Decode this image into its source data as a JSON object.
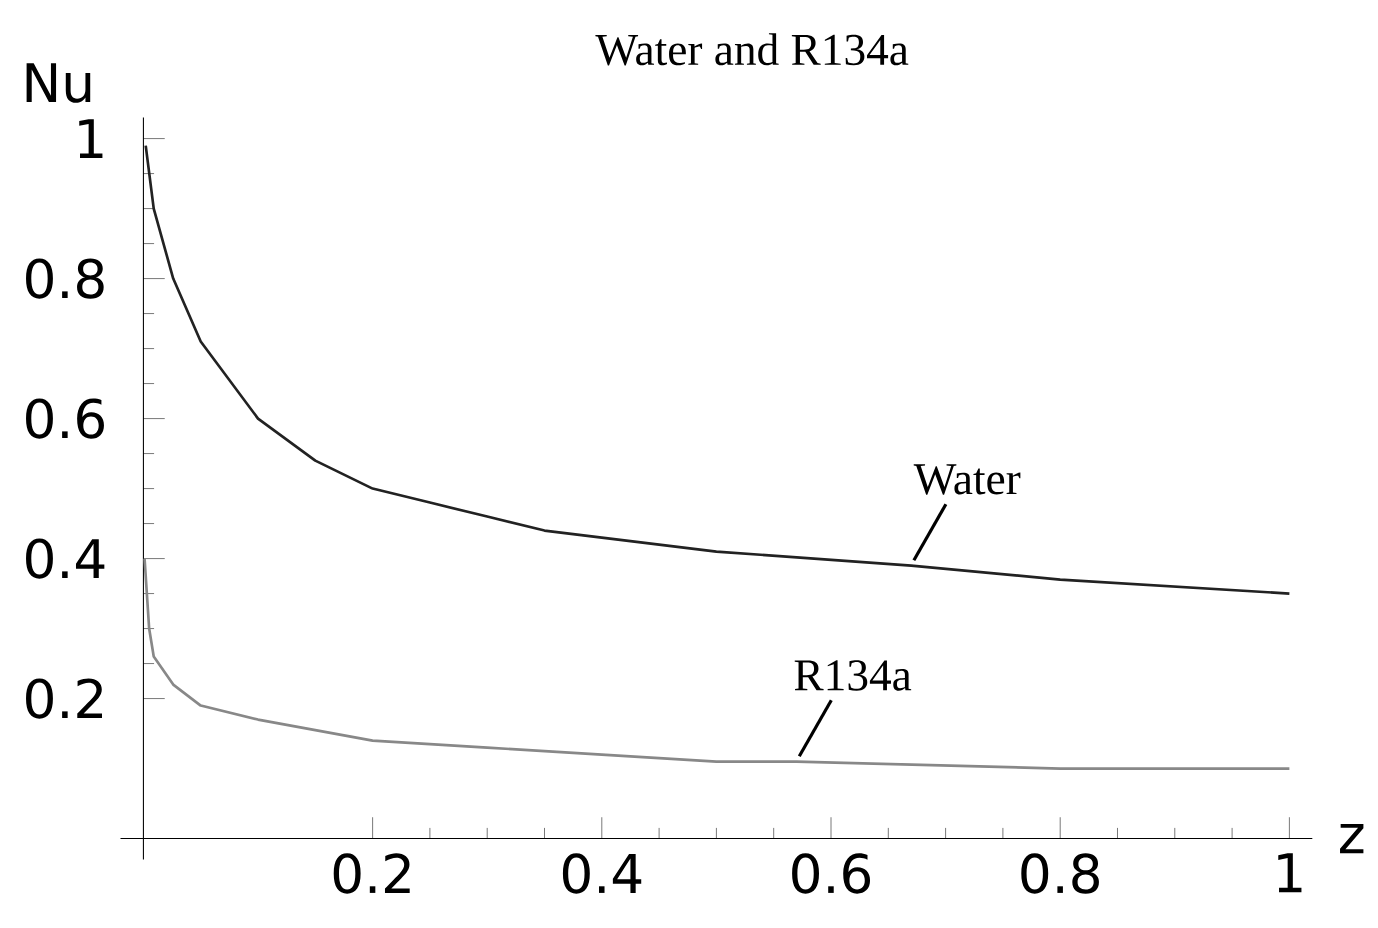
{
  "chart_data": {
    "type": "line",
    "title": "Water and R134a",
    "xlabel": "z",
    "ylabel": "Nu",
    "xlim": [
      -0.02,
      1.02
    ],
    "ylim": [
      -0.03,
      1.03
    ],
    "xticks": [
      0.2,
      0.4,
      0.6,
      0.8,
      1
    ],
    "yticks": [
      0.2,
      0.4,
      0.6,
      0.8,
      1
    ],
    "grid": false,
    "legend": false,
    "marker": "none",
    "line_style": "solid",
    "series": [
      {
        "name": "Water",
        "color": "#222222",
        "x": [
          0.002,
          0.009,
          0.026,
          0.05,
          0.1,
          0.15,
          0.2,
          0.25,
          0.3,
          0.35,
          0.4,
          0.5,
          0.67,
          0.8,
          1.0
        ],
        "values": [
          0.99,
          0.9,
          0.8,
          0.71,
          0.6,
          0.54,
          0.5,
          0.48,
          0.46,
          0.44,
          0.43,
          0.41,
          0.39,
          0.37,
          0.35
        ]
      },
      {
        "name": "R134a",
        "color": "#888888",
        "x": [
          0.001,
          0.005,
          0.009,
          0.026,
          0.05,
          0.1,
          0.2,
          0.3,
          0.4,
          0.5,
          0.57,
          0.8,
          1.0
        ],
        "values": [
          0.4,
          0.3,
          0.26,
          0.22,
          0.19,
          0.17,
          0.14,
          0.13,
          0.12,
          0.11,
          0.11,
          0.1,
          0.1
        ]
      }
    ]
  }
}
